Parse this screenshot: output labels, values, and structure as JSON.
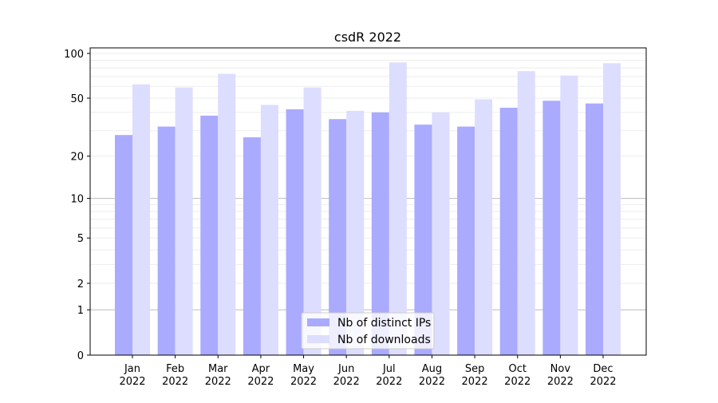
{
  "chart_data": {
    "type": "bar",
    "title": "csdR 2022",
    "xlabel": "",
    "ylabel": "",
    "yscale": "symlog (log10(y+1))",
    "ylim": [
      0,
      109
    ],
    "yticks": [
      0,
      1,
      2,
      5,
      10,
      20,
      50,
      100
    ],
    "grid": true,
    "legend_position": "bottom-center",
    "categories": [
      "Jan\n2022",
      "Feb\n2022",
      "Mar\n2022",
      "Apr\n2022",
      "May\n2022",
      "Jun\n2022",
      "Jul\n2022",
      "Aug\n2022",
      "Sep\n2022",
      "Oct\n2022",
      "Nov\n2022",
      "Dec\n2022"
    ],
    "series": [
      {
        "name": "Nb of distinct IPs",
        "color": "#aaaaff",
        "values": [
          28,
          32,
          38,
          27,
          42,
          36,
          40,
          33,
          32,
          43,
          48,
          46
        ]
      },
      {
        "name": "Nb of downloads",
        "color": "#ddddff",
        "values": [
          62,
          59,
          73,
          45,
          59,
          41,
          87,
          40,
          49,
          76,
          71,
          86
        ]
      }
    ]
  }
}
